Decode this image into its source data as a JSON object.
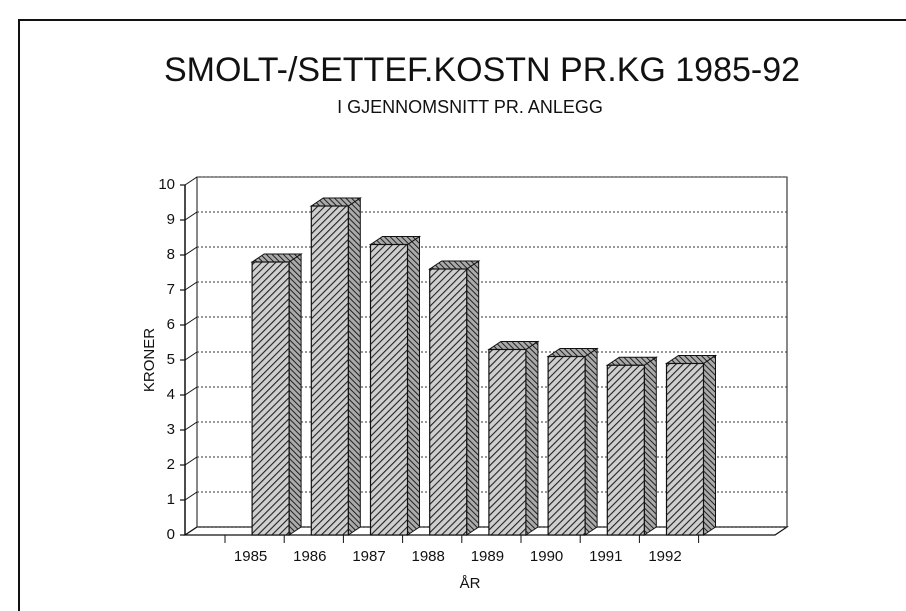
{
  "chart_data": {
    "type": "bar3d",
    "title": "SMOLT-/SETTEF.KOSTN PR.KG 1985-92",
    "subtitle": "I GJENNOMSNITT PR. ANLEGG",
    "x_label": "ÅR",
    "y_label": "KRONER",
    "categories": [
      "1985",
      "1986",
      "1987",
      "1988",
      "1989",
      "1990",
      "1991",
      "1992"
    ],
    "values": [
      7.8,
      9.4,
      8.3,
      7.6,
      5.3,
      5.1,
      4.85,
      4.9
    ],
    "ylim": [
      0,
      10
    ],
    "yticks": [
      0,
      1,
      2,
      3,
      4,
      5,
      6,
      7,
      8,
      9,
      10
    ],
    "grid": true
  }
}
